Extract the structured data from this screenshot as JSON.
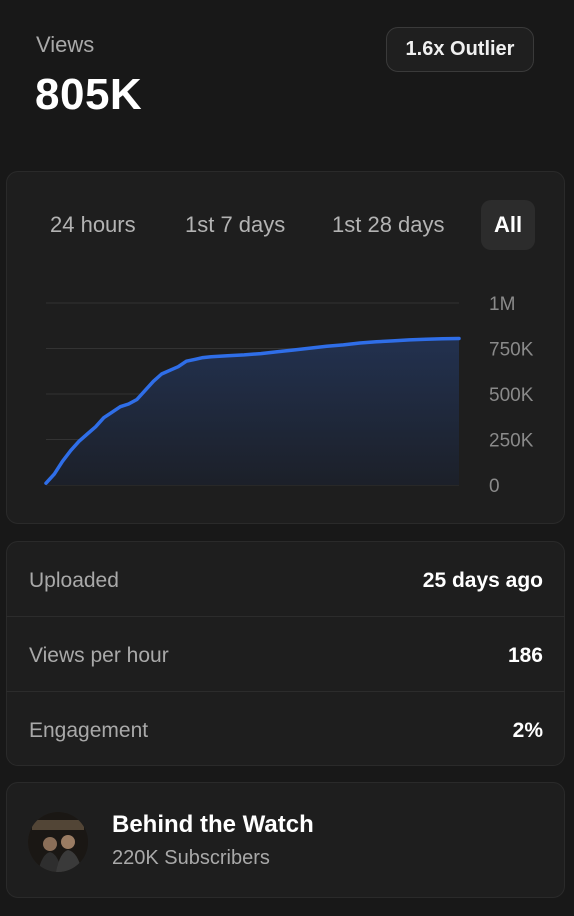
{
  "header": {
    "views_label": "Views",
    "views_value": "805K",
    "outlier_badge": "1.6x Outlier"
  },
  "tabs": [
    {
      "label": "24 hours",
      "active": false
    },
    {
      "label": "1st 7 days",
      "active": false
    },
    {
      "label": "1st 28 days",
      "active": false
    },
    {
      "label": "All",
      "active": true
    }
  ],
  "chart_data": {
    "type": "area",
    "title": "",
    "xlabel": "",
    "ylabel": "",
    "ylim": [
      0,
      1000000
    ],
    "y_ticks": [
      "1M",
      "750K",
      "500K",
      "250K",
      "0"
    ],
    "y_tick_values": [
      1000000,
      750000,
      500000,
      250000,
      0
    ],
    "x": [
      0,
      0.5,
      1,
      1.5,
      2,
      2.5,
      3,
      3.5,
      4,
      4.5,
      5,
      5.5,
      6,
      6.5,
      7,
      7.5,
      8,
      8.5,
      9,
      9.5,
      10,
      11,
      12,
      13,
      14,
      15,
      16,
      17,
      18,
      19,
      20,
      21,
      22,
      23,
      24,
      25
    ],
    "series": [
      {
        "values": [
          10000,
          60000,
          130000,
          190000,
          240000,
          280000,
          320000,
          370000,
          400000,
          430000,
          445000,
          470000,
          520000,
          570000,
          610000,
          630000,
          650000,
          680000,
          690000,
          700000,
          705000,
          710000,
          715000,
          722000,
          732000,
          742000,
          752000,
          762000,
          770000,
          780000,
          787000,
          792000,
          797000,
          801000,
          804000,
          805000
        ]
      }
    ],
    "colors": {
      "line": "#2f6ee8",
      "fill_top": "#22314f",
      "fill_bottom": "#1c2029",
      "grid": "#333333",
      "tick": "#8a8a8a"
    },
    "grid": true
  },
  "stats": [
    {
      "label": "Uploaded",
      "value": "25 days ago"
    },
    {
      "label": "Views per hour",
      "value": "186"
    },
    {
      "label": "Engagement",
      "value": "2%"
    }
  ],
  "channel": {
    "name": "Behind the Watch",
    "subscribers": "220K Subscribers"
  }
}
